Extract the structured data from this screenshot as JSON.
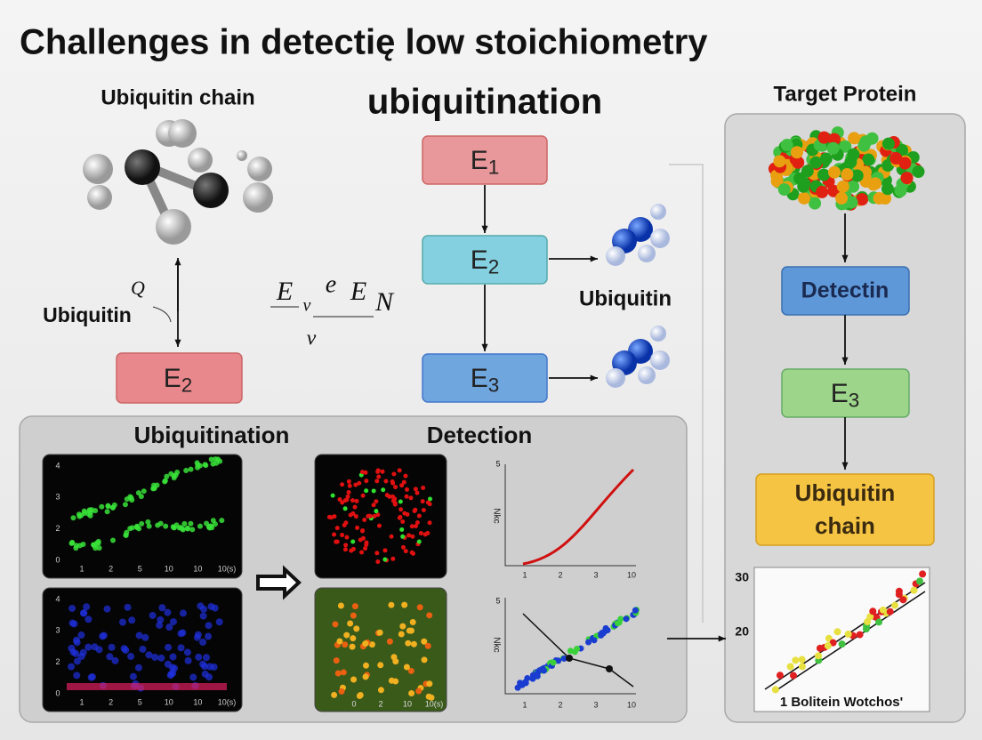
{
  "header": {
    "title_line1": "Challenges in detectię low stoichiometry",
    "title_line2": "ubiquitination"
  },
  "left": {
    "chain_label": "Ubiquitin chain",
    "q": "Q",
    "ubiquitin": "Ubiquitin",
    "box": {
      "base": "E",
      "sub": "2"
    }
  },
  "formula": [
    "E",
    "v",
    "e",
    "E",
    "N",
    "v"
  ],
  "center": {
    "boxes": [
      {
        "base": "E",
        "sub": "1"
      },
      {
        "base": "E",
        "sub": "2"
      },
      {
        "base": "E",
        "sub": "3"
      }
    ],
    "ubiquitin": "Ubiquitin"
  },
  "right": {
    "title": "Target Protein",
    "detect_box": "Detectin",
    "e3_box": {
      "base": "E",
      "sub": "3"
    },
    "chain_box": [
      "Ubiquitin",
      "chain"
    ]
  },
  "bottom": {
    "headings": [
      "Ubiquitination",
      "Detection"
    ],
    "plot_a": {
      "yticks": [
        "4",
        "3",
        "2",
        "0"
      ],
      "xticks": [
        "1",
        "2",
        "5",
        "10",
        "10",
        "10(s)"
      ]
    },
    "plot_b": {
      "yticks": [
        "4",
        "3",
        "2",
        "0"
      ],
      "xticks": [
        "1",
        "2",
        "5",
        "10",
        "10",
        "10(s)"
      ]
    },
    "plot_d": {
      "xticks": [
        "0",
        "2",
        "10",
        "10(s)"
      ]
    },
    "plot_e": {
      "ylabel": "Nkc",
      "ytop": "5",
      "xticks": [
        "1",
        "2",
        "3",
        "10"
      ]
    },
    "plot_f": {
      "ylabel": "Nkc",
      "ytop": "5",
      "xticks": [
        "1",
        "2",
        "3",
        "10"
      ]
    }
  },
  "scatter": {
    "yticks": [
      "30",
      "20"
    ],
    "caption": "1 Bolitein Wotchos'"
  }
}
